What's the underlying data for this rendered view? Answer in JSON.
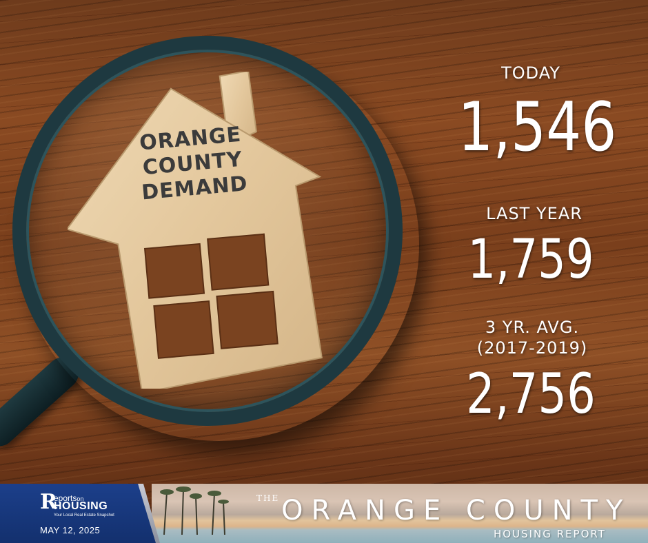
{
  "house_sign": {
    "line1": "ORANGE",
    "line2": "COUNTY",
    "line3": "DEMAND"
  },
  "stats": {
    "today_label": "TODAY",
    "today_value": "1,546",
    "last_year_label": "LAST YEAR",
    "last_year_value": "1,759",
    "avg_label": "3 YR. AVG.",
    "avg_range": "(2017-2019)",
    "avg_value": "2,756"
  },
  "footer": {
    "logo_top": "eports",
    "logo_on": "on",
    "logo_main": "HOUSING",
    "logo_tagline": "Your Local Real Estate Snapshot",
    "date": "MAY 12, 2025",
    "report_the": "THE",
    "report_title": "ORANGE COUNTY",
    "report_subtitle": "HOUSING REPORT"
  },
  "colors": {
    "brand_blue": "#1c3f8a",
    "text_white": "#ffffff",
    "wood": "#7a3f1c",
    "lens_ring": "#1e3940"
  },
  "icons": [
    "magnifying-glass-icon",
    "house-icon",
    "palm-tree-icon"
  ]
}
